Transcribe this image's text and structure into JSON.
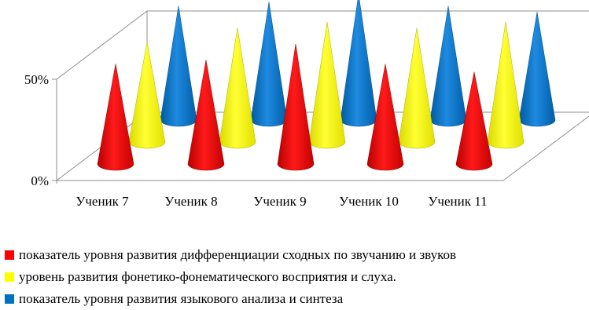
{
  "chart_data": {
    "type": "bar",
    "shape": "3d-cone",
    "categories": [
      "Ученик 7",
      "Ученик 8",
      "Ученик 9",
      "Ученик 10",
      "Ученик 11"
    ],
    "yticks": [
      "0%",
      "50%"
    ],
    "ylim": [
      0,
      100
    ],
    "grid": true,
    "legend_position": "bottom",
    "series": [
      {
        "name": "показатель уровня развития дифференциации сходных по звучанию и звуков",
        "color": "#ff0000",
        "values": [
          50,
          52,
          60,
          50,
          46
        ]
      },
      {
        "name": "уровень развития фонетико-фонематического восприятия и слуха.",
        "color": "#ffff00",
        "values": [
          50,
          57,
          60,
          57,
          60
        ]
      },
      {
        "name": "показатель уровня развития языкового анализа и синтеза",
        "color": "#0070c0",
        "values": [
          57,
          59,
          63,
          57,
          54
        ]
      }
    ]
  }
}
